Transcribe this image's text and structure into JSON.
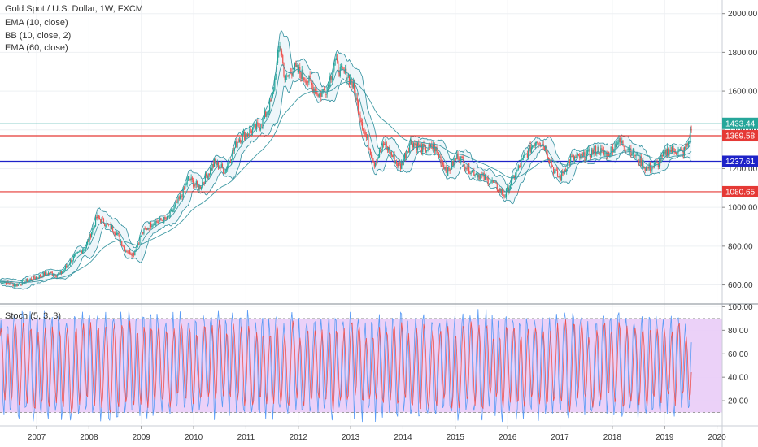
{
  "legend": {
    "symbol": "Gold Spot / U.S. Dollar, 1W, FXCM",
    "ema10": "EMA (10, close)",
    "bb": "BB (10, close, 2)",
    "ema60": "EMA (60, close)",
    "stoch": "Stoch (5, 3, 3)"
  },
  "colors": {
    "up": "#26a69a",
    "down": "#ef5350",
    "ema": "#3f9aa3",
    "bb": "#2f8f9d",
    "bb_fill": "#cfe6f0",
    "stoch_k": "#5b9cf5",
    "stoch_d": "#ef5350",
    "stoch_band": "#e8c9f7",
    "resistance": "#e53935",
    "support": "#1e22c8",
    "last_price": "#26a69a"
  },
  "chart_data": [
    {
      "type": "candlestick",
      "title": "Gold Spot / U.S. Dollar, 1W, FXCM",
      "x_tick_labels": [
        "2007",
        "2008",
        "2009",
        "2010",
        "2011",
        "2012",
        "2013",
        "2014",
        "2015",
        "2016",
        "2017",
        "2018",
        "2019",
        "2020"
      ],
      "x_tick_years": [
        2007,
        2008,
        2009,
        2010,
        2011,
        2012,
        2013,
        2014,
        2015,
        2016,
        2017,
        2018,
        2019,
        2020
      ],
      "x_range": [
        2006.3,
        2020.1
      ],
      "y_tick_labels": [
        "600.00",
        "800.00",
        "1000.00",
        "1200.00",
        "1400.00",
        "1600.00",
        "1800.00",
        "2000.00"
      ],
      "y_ticks": [
        600,
        800,
        1000,
        1200,
        1400,
        1600,
        1800,
        2000
      ],
      "ylim": [
        510,
        2070
      ],
      "horizontal_levels": [
        {
          "value": 1369.58,
          "label": "1369.58",
          "role": "resistance"
        },
        {
          "value": 1237.61,
          "label": "1237.61",
          "role": "support"
        },
        {
          "value": 1080.65,
          "label": "1080.65",
          "role": "resistance"
        }
      ],
      "last_price": {
        "value": 1433.44,
        "label": "1433.44"
      },
      "price_path": [
        [
          2006.3,
          620
        ],
        [
          2006.6,
          600
        ],
        [
          2006.9,
          630
        ],
        [
          2007.2,
          660
        ],
        [
          2007.45,
          655
        ],
        [
          2007.7,
          740
        ],
        [
          2007.95,
          800
        ],
        [
          2008.15,
          950
        ],
        [
          2008.3,
          920
        ],
        [
          2008.5,
          880
        ],
        [
          2008.7,
          780
        ],
        [
          2008.85,
          760
        ],
        [
          2009.0,
          860
        ],
        [
          2009.2,
          920
        ],
        [
          2009.5,
          940
        ],
        [
          2009.75,
          1050
        ],
        [
          2009.9,
          1150
        ],
        [
          2010.1,
          1100
        ],
        [
          2010.4,
          1230
        ],
        [
          2010.6,
          1190
        ],
        [
          2010.85,
          1350
        ],
        [
          2011.0,
          1380
        ],
        [
          2011.3,
          1430
        ],
        [
          2011.5,
          1560
        ],
        [
          2011.65,
          1850
        ],
        [
          2011.75,
          1650
        ],
        [
          2011.9,
          1720
        ],
        [
          2012.05,
          1690
        ],
        [
          2012.2,
          1650
        ],
        [
          2012.4,
          1580
        ],
        [
          2012.55,
          1620
        ],
        [
          2012.7,
          1750
        ],
        [
          2012.8,
          1700
        ],
        [
          2012.95,
          1680
        ],
        [
          2013.05,
          1620
        ],
        [
          2013.25,
          1400
        ],
        [
          2013.45,
          1230
        ],
        [
          2013.65,
          1330
        ],
        [
          2013.85,
          1240
        ],
        [
          2013.95,
          1210
        ],
        [
          2014.15,
          1340
        ],
        [
          2014.4,
          1300
        ],
        [
          2014.6,
          1310
        ],
        [
          2014.85,
          1180
        ],
        [
          2015.05,
          1270
        ],
        [
          2015.25,
          1200
        ],
        [
          2015.5,
          1160
        ],
        [
          2015.7,
          1130
        ],
        [
          2015.95,
          1060
        ],
        [
          2016.1,
          1150
        ],
        [
          2016.3,
          1250
        ],
        [
          2016.55,
          1350
        ],
        [
          2016.7,
          1320
        ],
        [
          2016.9,
          1180
        ],
        [
          2017.0,
          1150
        ],
        [
          2017.2,
          1250
        ],
        [
          2017.45,
          1260
        ],
        [
          2017.7,
          1300
        ],
        [
          2017.9,
          1270
        ],
        [
          2018.1,
          1340
        ],
        [
          2018.3,
          1310
        ],
        [
          2018.5,
          1250
        ],
        [
          2018.65,
          1200
        ],
        [
          2018.85,
          1220
        ],
        [
          2019.05,
          1290
        ],
        [
          2019.2,
          1300
        ],
        [
          2019.35,
          1280
        ],
        [
          2019.45,
          1330
        ],
        [
          2019.53,
          1433
        ]
      ],
      "stoch_y_tick_labels": [
        "20.00",
        "40.00",
        "60.00",
        "80.00",
        "100.00"
      ],
      "stoch_y_ticks": [
        20,
        40,
        60,
        80,
        100
      ],
      "stoch_ylim": [
        0,
        101
      ],
      "stoch_band": [
        10,
        90
      ]
    }
  ]
}
